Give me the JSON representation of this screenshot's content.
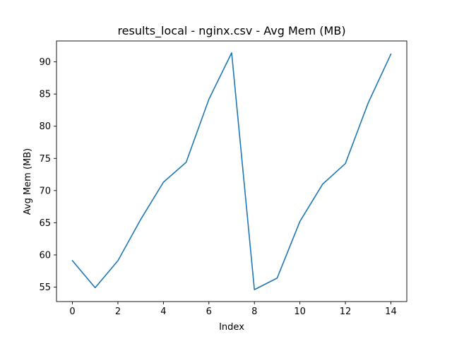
{
  "chart_data": {
    "type": "line",
    "title": "results_local - nginx.csv - Avg Mem (MB)",
    "xlabel": "Index",
    "ylabel": "Avg Mem (MB)",
    "x": [
      0,
      1,
      2,
      3,
      4,
      5,
      6,
      7,
      8,
      9,
      10,
      11,
      12,
      13,
      14
    ],
    "series": [
      {
        "values": [
          59.1,
          54.9,
          59.1,
          65.5,
          71.3,
          74.4,
          84.2,
          91.4,
          54.6,
          56.4,
          65.2,
          71.0,
          74.2,
          83.6,
          91.2
        ],
        "color": "#1f77b4"
      }
    ],
    "xlim": [
      -0.7,
      14.7
    ],
    "ylim": [
      52.75,
      93.25
    ],
    "xticks": [
      0,
      2,
      4,
      6,
      8,
      10,
      12,
      14
    ],
    "yticks": [
      55,
      60,
      65,
      70,
      75,
      80,
      85,
      90
    ],
    "grid": false,
    "legend": "none"
  }
}
